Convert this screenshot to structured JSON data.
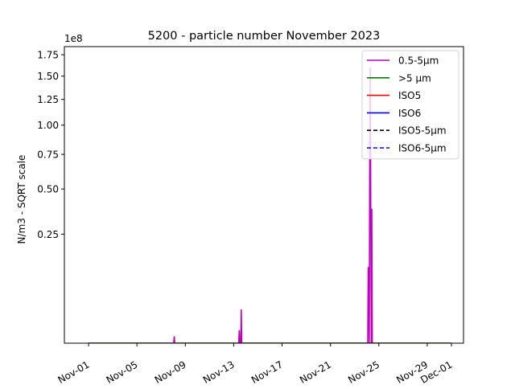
{
  "chart_data": {
    "type": "line",
    "title": "5200 - particle number November 2023",
    "ylabel": "N/m3 - SQRT scale",
    "xlabel": "",
    "y_scale": "sqrt",
    "y_multiplier_label": "1e8",
    "ylim": [
      0,
      185000000
    ],
    "y_ticks": [
      0.25,
      0.5,
      0.75,
      1.0,
      1.25,
      1.5,
      1.75
    ],
    "y_tick_labels": [
      "0.25",
      "0.50",
      "0.75",
      "1.00",
      "1.25",
      "1.50",
      "1.75"
    ],
    "xlim": [
      "2023-10-30",
      "2023-12-02"
    ],
    "x_ticks": [
      "2023-11-01",
      "2023-11-05",
      "2023-11-09",
      "2023-11-13",
      "2023-11-17",
      "2023-11-21",
      "2023-11-25",
      "2023-11-29",
      "2023-12-01"
    ],
    "x_tick_labels": [
      "Nov-01",
      "Nov-05",
      "Nov-09",
      "Nov-13",
      "Nov-17",
      "Nov-21",
      "Nov-25",
      "Nov-29",
      "Dec-01"
    ],
    "grid": false,
    "legend_position": "top-right",
    "series": [
      {
        "name": "0.5-5µm",
        "color": "#bf00bf",
        "dash": "solid",
        "points": [
          [
            "2023-11-01",
            0
          ],
          [
            "2023-11-08 01:00",
            0
          ],
          [
            "2023-11-08 02:00",
            100000
          ],
          [
            "2023-11-08 03:00",
            0
          ],
          [
            "2023-11-13 10:00",
            0
          ],
          [
            "2023-11-13 11:00",
            350000
          ],
          [
            "2023-11-13 12:00",
            0
          ],
          [
            "2023-11-13 14:00",
            0
          ],
          [
            "2023-11-13 15:00",
            2400000
          ],
          [
            "2023-11-13 16:00",
            0
          ],
          [
            "2023-11-24 02:00",
            0
          ],
          [
            "2023-11-24 03:00",
            12000000
          ],
          [
            "2023-11-24 04:00",
            12000000
          ],
          [
            "2023-11-24 05:00",
            0
          ],
          [
            "2023-11-24 06:00",
            82000000
          ],
          [
            "2023-11-24 07:00",
            160000000
          ],
          [
            "2023-11-24 08:00",
            36000000
          ],
          [
            "2023-11-24 09:00",
            0
          ],
          [
            "2023-11-24 10:00",
            38000000
          ],
          [
            "2023-11-24 11:00",
            0
          ],
          [
            "2023-11-30 23:00",
            0
          ]
        ]
      },
      {
        "name": ">5 µm",
        "color": "#008000",
        "dash": "solid",
        "points": [
          [
            "2023-11-01",
            0
          ],
          [
            "2023-11-30 23:00",
            0
          ]
        ]
      },
      {
        "name": "ISO5",
        "color": "#ff0000",
        "dash": "solid",
        "points": []
      },
      {
        "name": "ISO6",
        "color": "#0000ff",
        "dash": "solid",
        "points": []
      },
      {
        "name": "ISO5-5µm",
        "color": "#000000",
        "dash": "dashed",
        "points": []
      },
      {
        "name": "ISO6-5µm",
        "color": "#0000ff",
        "dash": "dashed",
        "points": []
      }
    ]
  }
}
